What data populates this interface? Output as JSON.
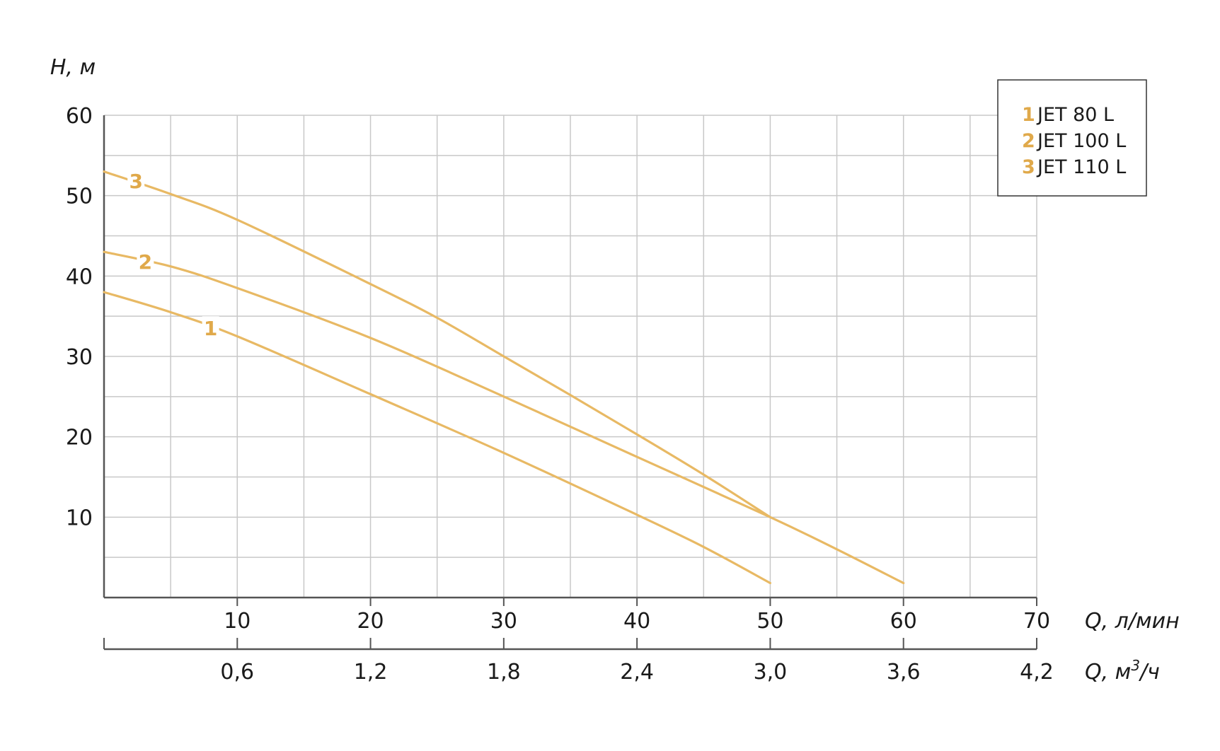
{
  "chart_data": {
    "type": "line",
    "y_axis": {
      "label": "H, м",
      "range": [
        0,
        60
      ],
      "ticks": [
        10,
        20,
        30,
        40,
        50,
        60
      ],
      "tick_labels": [
        "10",
        "20",
        "30",
        "40",
        "50",
        "60"
      ]
    },
    "x_axis": {
      "label": "Q, л/мин",
      "range": [
        0,
        70
      ],
      "ticks": [
        10,
        20,
        30,
        40,
        50,
        60,
        70
      ],
      "tick_labels": [
        "10",
        "20",
        "30",
        "40",
        "50",
        "60",
        "70"
      ]
    },
    "x2_axis": {
      "label": "Q, м",
      "label_superscript": "3",
      "label_suffix": "/ч",
      "range": [
        0,
        4.2
      ],
      "ticks": [
        0.6,
        1.2,
        1.8,
        2.4,
        3.0,
        3.6,
        4.2
      ],
      "tick_labels": [
        "0,6",
        "1,2",
        "1,8",
        "2,4",
        "3,0",
        "3,6",
        "4,2"
      ]
    },
    "grid": true,
    "legend": {
      "position": "top-right",
      "entries": [
        {
          "number": "1",
          "text": "JET 80 L"
        },
        {
          "number": "2",
          "text": "JET 100 L"
        },
        {
          "number": "3",
          "text": "JET 110 L"
        }
      ]
    },
    "series": [
      {
        "name": "JET 80 L",
        "label": "1",
        "color": "#e8b964",
        "label_at": {
          "x": 8,
          "y": 33.5
        },
        "points": [
          [
            0,
            38
          ],
          [
            5,
            35.5
          ],
          [
            10,
            32.5
          ],
          [
            20,
            25.3
          ],
          [
            30,
            18
          ],
          [
            40,
            10.3
          ],
          [
            45,
            6.3
          ],
          [
            50,
            1.8
          ]
        ]
      },
      {
        "name": "JET 100 L",
        "label": "2",
        "color": "#e8b964",
        "label_at": {
          "x": 3.1,
          "y": 41.8
        },
        "points": [
          [
            0,
            43
          ],
          [
            5,
            41.2
          ],
          [
            10,
            38.5
          ],
          [
            20,
            32.3
          ],
          [
            30,
            25
          ],
          [
            40,
            17.5
          ],
          [
            50,
            10
          ],
          [
            55,
            6
          ],
          [
            60,
            1.8
          ]
        ]
      },
      {
        "name": "JET 110 L",
        "label": "3",
        "color": "#e8b964",
        "label_at": {
          "x": 2.4,
          "y": 51.8
        },
        "points": [
          [
            0,
            53
          ],
          [
            5,
            50.2
          ],
          [
            10,
            47
          ],
          [
            20,
            39
          ],
          [
            25,
            34.8
          ],
          [
            30,
            30
          ],
          [
            35,
            25.2
          ],
          [
            40,
            20.3
          ],
          [
            45,
            15.3
          ],
          [
            50,
            10
          ]
        ]
      }
    ],
    "colors": {
      "curve": "#e8b964",
      "grid": "#c8c8c8",
      "axis": "#555555",
      "legend_number": "#e0a94a"
    }
  }
}
